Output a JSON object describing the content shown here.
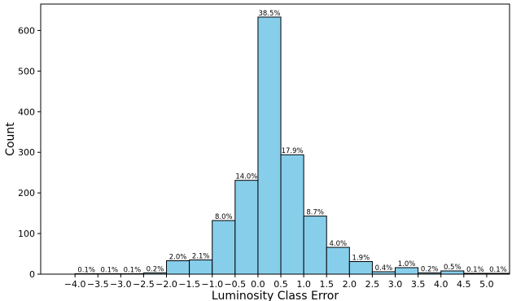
{
  "chart_data": {
    "type": "bar",
    "xlabel": "Luminosity Class Error",
    "ylabel": "Count",
    "xlim": [
      -4.75,
      5.5
    ],
    "ylim": [
      0,
      665
    ],
    "x_ticks": [
      -4.0,
      -3.5,
      -3.0,
      -2.5,
      -2.0,
      -1.5,
      -1.0,
      -0.5,
      0.0,
      0.5,
      1.0,
      1.5,
      2.0,
      2.5,
      3.0,
      3.5,
      4.0,
      4.5,
      5.0
    ],
    "x_tick_labels": [
      "−4.0",
      "−3.5",
      "−3.0",
      "−2.5",
      "−2.0",
      "−1.5",
      "−1.0",
      "−0.5",
      "0.0",
      "0.5",
      "1.0",
      "1.5",
      "2.0",
      "2.5",
      "3.0",
      "3.5",
      "4.0",
      "4.5",
      "5.0"
    ],
    "y_ticks": [
      0,
      100,
      200,
      300,
      400,
      500,
      600
    ],
    "y_tick_labels": [
      "0",
      "100",
      "200",
      "300",
      "400",
      "500",
      "600"
    ],
    "bin_width": 0.5,
    "bin_starts": [
      -4.0,
      -3.5,
      -3.0,
      -2.5,
      -2.0,
      -1.5,
      -1.0,
      -0.5,
      0.0,
      0.5,
      1.0,
      1.5,
      2.0,
      2.5,
      3.0,
      3.5,
      4.0,
      4.5,
      5.0
    ],
    "values": [
      1,
      1,
      1,
      3,
      33,
      35,
      132,
      231,
      633,
      294,
      143,
      66,
      31,
      6,
      16,
      3,
      8,
      2,
      2
    ],
    "labels": [
      "0.1%",
      "0.1%",
      "0.1%",
      "0.2%",
      "2.0%",
      "2.1%",
      "8.0%",
      "14.0%",
      "38.5%",
      "17.9%",
      "8.7%",
      "4.0%",
      "1.9%",
      "0.4%",
      "1.0%",
      "0.2%",
      "0.5%",
      "0.1%",
      "0.1%"
    ],
    "bar_color": "#87CEEB",
    "edge_color": "#000000",
    "grid": false,
    "legend": "none"
  }
}
